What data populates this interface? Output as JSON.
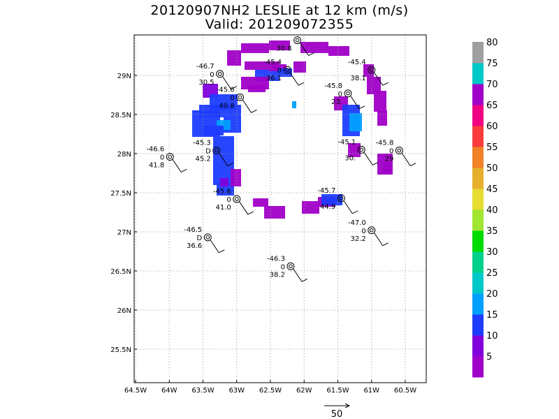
{
  "title": "20120907NH2 LESLIE at 12 km (m/s)",
  "subtitle": "Valid: 201209072355",
  "map": {
    "lon_range": [
      -64.5,
      -60.5
    ],
    "lat_range": [
      25.2,
      29.5
    ],
    "x_ticks": [
      "64.5W",
      "64W",
      "63.5W",
      "63W",
      "62.5W",
      "62W",
      "61.5W",
      "61W",
      "60.5W"
    ],
    "y_ticks": [
      "25.5N",
      "26N",
      "26.5N",
      "27N",
      "27.5N",
      "28N",
      "28.5N",
      "29N"
    ],
    "grid": true
  },
  "colorbar": {
    "labels": [
      "5",
      "10",
      "15",
      "20",
      "25",
      "30",
      "35",
      "40",
      "45",
      "50",
      "55",
      "60",
      "65",
      "70",
      "75",
      "80"
    ],
    "colors": [
      "#a000c8",
      "#8200dc",
      "#1e3cff",
      "#00a0ff",
      "#00c8c8",
      "#00d28c",
      "#00dc00",
      "#a0e632",
      "#e6dc32",
      "#e6af2d",
      "#f08228",
      "#fa3c3c",
      "#f00082",
      "#a000c8",
      "#00c8c8",
      "#a0a0a0"
    ]
  },
  "stations": [
    {
      "lon": -63.25,
      "lat": 29.02,
      "temp": "-46.7",
      "dew": "0",
      "alt": "30.5"
    },
    {
      "lon": -62.25,
      "lat": 29.07,
      "temp": "-45.4",
      "dew": "0",
      "alt": "36.1"
    },
    {
      "lon": -62.1,
      "lat": 29.45,
      "temp": "",
      "dew": "",
      "alt": "30.8"
    },
    {
      "lon": -61.0,
      "lat": 29.07,
      "temp": "-45.4",
      "dew": "",
      "alt": "38.1"
    },
    {
      "lon": -62.95,
      "lat": 28.72,
      "temp": "-45.6",
      "dew": "0",
      "alt": "40.8"
    },
    {
      "lon": -61.35,
      "lat": 28.77,
      "temp": "-45.8",
      "dew": "0",
      "alt": "23."
    },
    {
      "lon": -63.3,
      "lat": 28.04,
      "temp": "-45.3",
      "dew": "D",
      "alt": "45.2"
    },
    {
      "lon": -63.99,
      "lat": 27.96,
      "temp": "-46.6",
      "dew": "0",
      "alt": "41.8"
    },
    {
      "lon": -61.15,
      "lat": 28.05,
      "temp": "-45.1",
      "dew": "",
      "alt": "30."
    },
    {
      "lon": -60.59,
      "lat": 28.04,
      "temp": "-45.8",
      "dew": "0",
      "alt": "29"
    },
    {
      "lon": -63.0,
      "lat": 27.42,
      "temp": "-45.6",
      "dew": "0",
      "alt": "41.0"
    },
    {
      "lon": -61.45,
      "lat": 27.43,
      "temp": "-45.7",
      "dew": "",
      "alt": "44.9"
    },
    {
      "lon": -63.43,
      "lat": 26.93,
      "temp": "-46.5",
      "dew": "D",
      "alt": "36.6"
    },
    {
      "lon": -61.0,
      "lat": 27.02,
      "temp": "-47.0",
      "dew": "0",
      "alt": "32.2"
    },
    {
      "lon": -62.2,
      "lat": 26.56,
      "temp": "-46.3",
      "dew": "0",
      "alt": "38.2"
    }
  ],
  "reference_vector": {
    "label": "50"
  }
}
